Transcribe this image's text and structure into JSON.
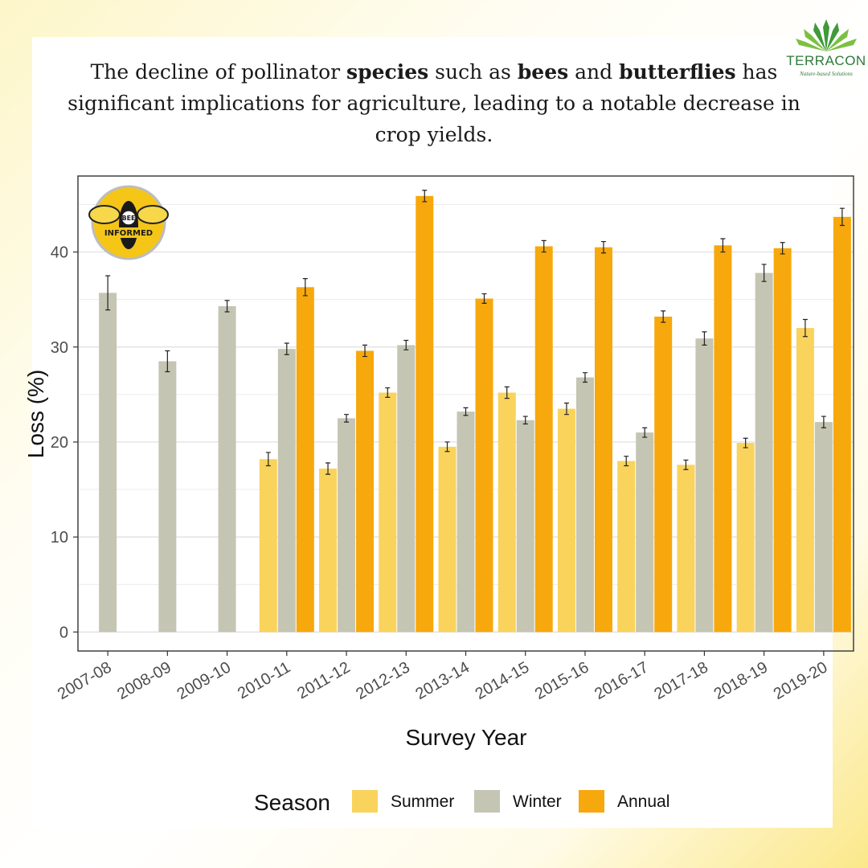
{
  "headline": {
    "p1": "The decline of pollinator ",
    "b1": "species",
    "p2": " such as ",
    "b2": "bees",
    "p3": " and ",
    "b3": "butterflies",
    "p4": " has significant implications for agriculture, leading to a notable decrease in crop yields."
  },
  "brand": {
    "name": "TERRACON",
    "tagline": "Nature-based Solutions",
    "color": "#2e7a38"
  },
  "badge": {
    "line1": "BEE",
    "line2": "INFORMED",
    "color": "#f5c518"
  },
  "chart_data": {
    "type": "bar",
    "title": "",
    "xlabel": "Survey Year",
    "ylabel": "Loss (%)",
    "ylim": [
      -2,
      48
    ],
    "yticks": [
      0,
      10,
      20,
      30,
      40
    ],
    "grid": true,
    "legend_title": "Season",
    "legend_position": "bottom",
    "categories": [
      "2007-08",
      "2008-09",
      "2009-10",
      "2010-11",
      "2011-12",
      "2012-13",
      "2013-14",
      "2014-15",
      "2015-16",
      "2016-17",
      "2017-18",
      "2018-19",
      "2019-20"
    ],
    "series": [
      {
        "name": "Summer",
        "color": "#f9d35b",
        "values": [
          null,
          null,
          null,
          18.2,
          17.2,
          25.2,
          19.5,
          25.2,
          23.5,
          18.0,
          17.6,
          19.9,
          32.0
        ],
        "err": [
          null,
          null,
          null,
          0.7,
          0.6,
          0.5,
          0.5,
          0.6,
          0.6,
          0.5,
          0.5,
          0.5,
          0.9
        ]
      },
      {
        "name": "Winter",
        "color": "#c5c5b4",
        "values": [
          35.7,
          28.5,
          34.3,
          29.8,
          22.5,
          30.2,
          23.2,
          22.3,
          26.8,
          21.0,
          30.9,
          37.8,
          22.1
        ],
        "err": [
          1.8,
          1.1,
          0.6,
          0.6,
          0.4,
          0.5,
          0.4,
          0.4,
          0.5,
          0.5,
          0.7,
          0.9,
          0.6
        ]
      },
      {
        "name": "Annual",
        "color": "#f7a80d",
        "values": [
          null,
          null,
          null,
          36.3,
          29.6,
          45.9,
          35.1,
          40.6,
          40.5,
          33.2,
          40.7,
          40.4,
          43.7
        ],
        "err": [
          null,
          null,
          null,
          0.9,
          0.6,
          0.6,
          0.5,
          0.6,
          0.6,
          0.6,
          0.7,
          0.6,
          0.9
        ]
      }
    ]
  }
}
